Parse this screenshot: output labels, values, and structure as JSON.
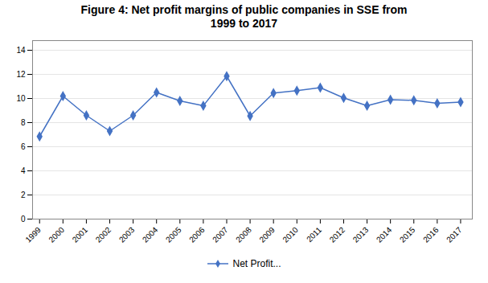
{
  "chart_data": {
    "type": "line",
    "title": "Figure 4: Net profit margins of public companies in SSE from\n1999 to 2017",
    "x": [
      1999,
      2000,
      2001,
      2002,
      2003,
      2004,
      2005,
      2006,
      2007,
      2008,
      2009,
      2010,
      2011,
      2012,
      2013,
      2014,
      2015,
      2016,
      2017
    ],
    "series": [
      {
        "name": "Net Profit...",
        "color": "#4472C4",
        "marker": "diamond",
        "values": [
          6.85,
          10.2,
          8.6,
          7.3,
          8.6,
          10.5,
          9.8,
          9.4,
          11.85,
          8.55,
          10.45,
          10.65,
          10.9,
          10.05,
          9.4,
          9.9,
          9.85,
          9.6,
          9.7
        ]
      }
    ],
    "xlim": [
      1998.7,
      2017.5
    ],
    "xticks": [
      1999,
      2000,
      2001,
      2002,
      2003,
      2004,
      2005,
      2006,
      2007,
      2008,
      2009,
      2010,
      2011,
      2012,
      2013,
      2014,
      2015,
      2016,
      2017
    ],
    "ylim": [
      0,
      14.8
    ],
    "yticks": [
      0,
      2,
      4,
      6,
      8,
      10,
      12,
      14
    ],
    "grid": true,
    "legend": "bottom"
  }
}
